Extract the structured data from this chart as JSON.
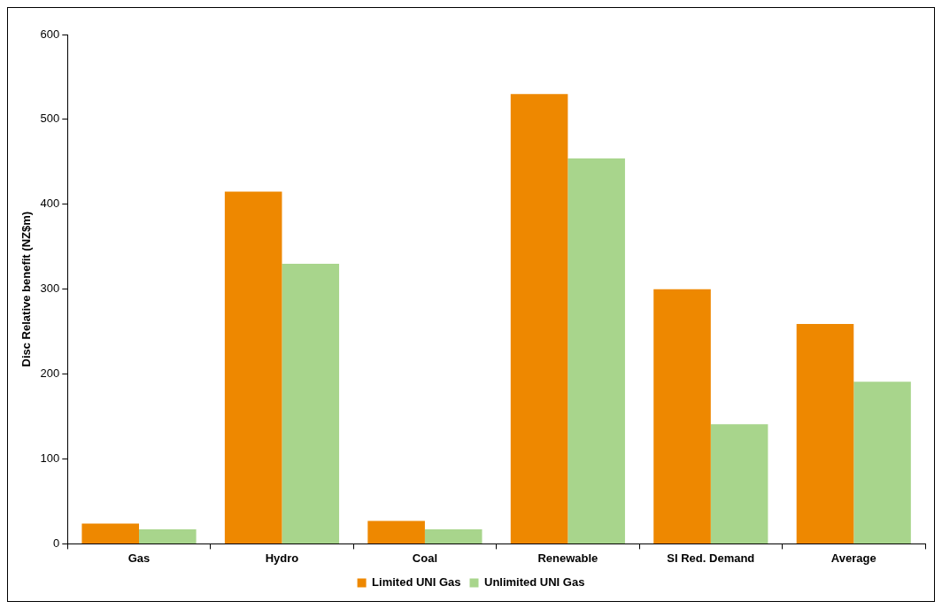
{
  "chart_data": {
    "type": "bar",
    "ylabel": "Disc Relative benefit (NZ$m)",
    "categories": [
      "Gas",
      "Hydro",
      "Coal",
      "Renewable",
      "SI Red. Demand",
      "Average"
    ],
    "series": [
      {
        "name": "Limited UNI Gas",
        "color": "#ee8800",
        "values": [
          24,
          415,
          27,
          530,
          300,
          259
        ]
      },
      {
        "name": "Unlimited UNI Gas",
        "color": "#a8d58c",
        "values": [
          17,
          330,
          17,
          454,
          141,
          191
        ]
      }
    ],
    "ylim": [
      0,
      600
    ],
    "yticks": [
      0,
      100,
      200,
      300,
      400,
      500,
      600
    ],
    "grid": false,
    "legend": "bottom"
  }
}
